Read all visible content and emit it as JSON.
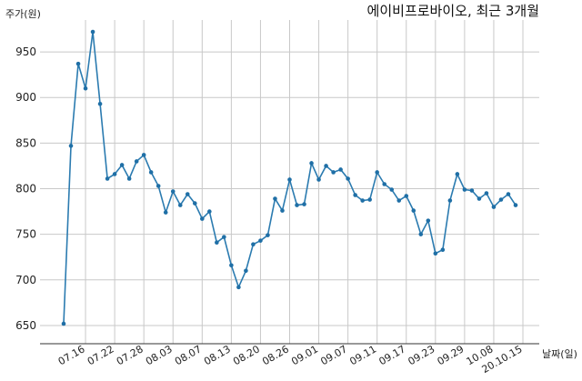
{
  "chart_data": {
    "type": "line",
    "title": "에이비프로바이오, 최근 3개월",
    "ylabel": "주가(원)",
    "xlabel": "날짜(일)",
    "ylim": [
      630,
      985
    ],
    "yticks": [
      650,
      700,
      750,
      800,
      850,
      900,
      950
    ],
    "grid": true,
    "xtick_labels": [
      "07.16",
      "07.22",
      "07.28",
      "08.03",
      "08.07",
      "08.13",
      "08.20",
      "08.26",
      "09.01",
      "09.07",
      "09.11",
      "09.17",
      "09.23",
      "09.29",
      "10.08",
      "20.10.15"
    ],
    "xtick_index": [
      3,
      7,
      11,
      15,
      19,
      23,
      27,
      31,
      35,
      39,
      43,
      47,
      51,
      55,
      59,
      63
    ],
    "series": [
      {
        "values": [
          652,
          847,
          937,
          910,
          972,
          893,
          811,
          816,
          826,
          811,
          830,
          837,
          818,
          803,
          774,
          797,
          782,
          794,
          784,
          767,
          775,
          741,
          747,
          716,
          692,
          710,
          739,
          743,
          749,
          789,
          776,
          810,
          782,
          783,
          828,
          810,
          825,
          818,
          821,
          811,
          793,
          787,
          788,
          818,
          805,
          799,
          787,
          792,
          776,
          750,
          765,
          729,
          733,
          787,
          816,
          799,
          798,
          789,
          795,
          780,
          788,
          794,
          782
        ]
      }
    ]
  }
}
